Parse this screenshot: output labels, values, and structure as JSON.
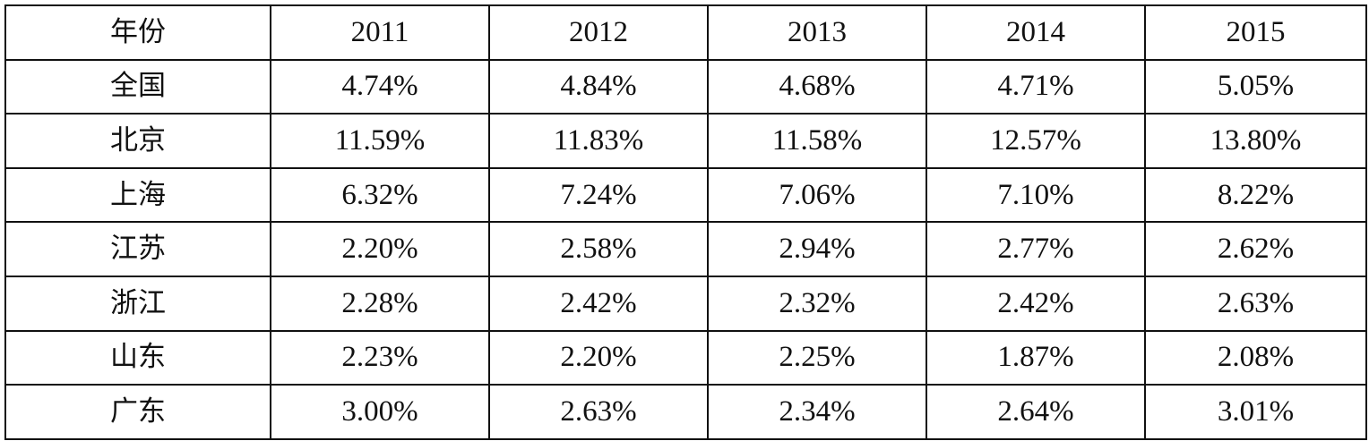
{
  "table": {
    "header": [
      "年份",
      "2011",
      "2012",
      "2013",
      "2014",
      "2015"
    ],
    "rows": [
      {
        "label": "全国",
        "values": [
          "4.74%",
          "4.84%",
          "4.68%",
          "4.71%",
          "5.05%"
        ]
      },
      {
        "label": "北京",
        "values": [
          "11.59%",
          "11.83%",
          "11.58%",
          "12.57%",
          "13.80%"
        ]
      },
      {
        "label": "上海",
        "values": [
          "6.32%",
          "7.24%",
          "7.06%",
          "7.10%",
          "8.22%"
        ]
      },
      {
        "label": "江苏",
        "values": [
          "2.20%",
          "2.58%",
          "2.94%",
          "2.77%",
          "2.62%"
        ]
      },
      {
        "label": "浙江",
        "values": [
          "2.28%",
          "2.42%",
          "2.32%",
          "2.42%",
          "2.63%"
        ]
      },
      {
        "label": "山东",
        "values": [
          "2.23%",
          "2.20%",
          "2.25%",
          "1.87%",
          "2.08%"
        ]
      },
      {
        "label": "广东",
        "values": [
          "3.00%",
          "2.63%",
          "2.34%",
          "2.64%",
          "3.01%"
        ]
      }
    ]
  }
}
